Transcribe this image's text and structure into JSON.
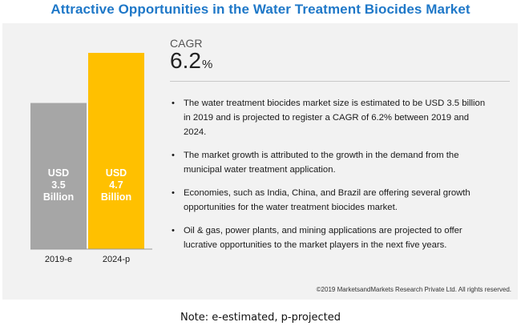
{
  "title": "Attractive Opportunities in the Water Treatment Biocides Market",
  "cagr": {
    "label": "CAGR",
    "value": "6.2",
    "unit": "%"
  },
  "chart_data": {
    "type": "bar",
    "categories": [
      "2019-e",
      "2024-p"
    ],
    "values": [
      3.5,
      4.7
    ],
    "data_labels": [
      [
        "USD",
        "3.5",
        "Billion"
      ],
      [
        "USD",
        "4.7",
        "Billion"
      ]
    ],
    "colors": [
      "#a6a6a6",
      "#ffc000"
    ],
    "title": "",
    "xlabel": "",
    "ylabel": "",
    "ylim": [
      0,
      4.7
    ],
    "grid": false
  },
  "bullets": [
    "The water treatment biocides market size is estimated to be USD 3.5 billion in 2019 and is projected to register a CAGR of 6.2% between 2019 and 2024.",
    "The market growth is attributed to the growth in the demand from the municipal water treatment application.",
    "Economies, such as India, China, and Brazil are offering several growth opportunities for the water treatment biocides market.",
    "Oil & gas, power plants, and mining applications are projected to offer lucrative opportunities to the market players in the next five years."
  ],
  "copyright": "©2019 MarketsandMarkets Research Private Ltd. All rights reserved.",
  "note": "Note: e-estimated, p-projected"
}
